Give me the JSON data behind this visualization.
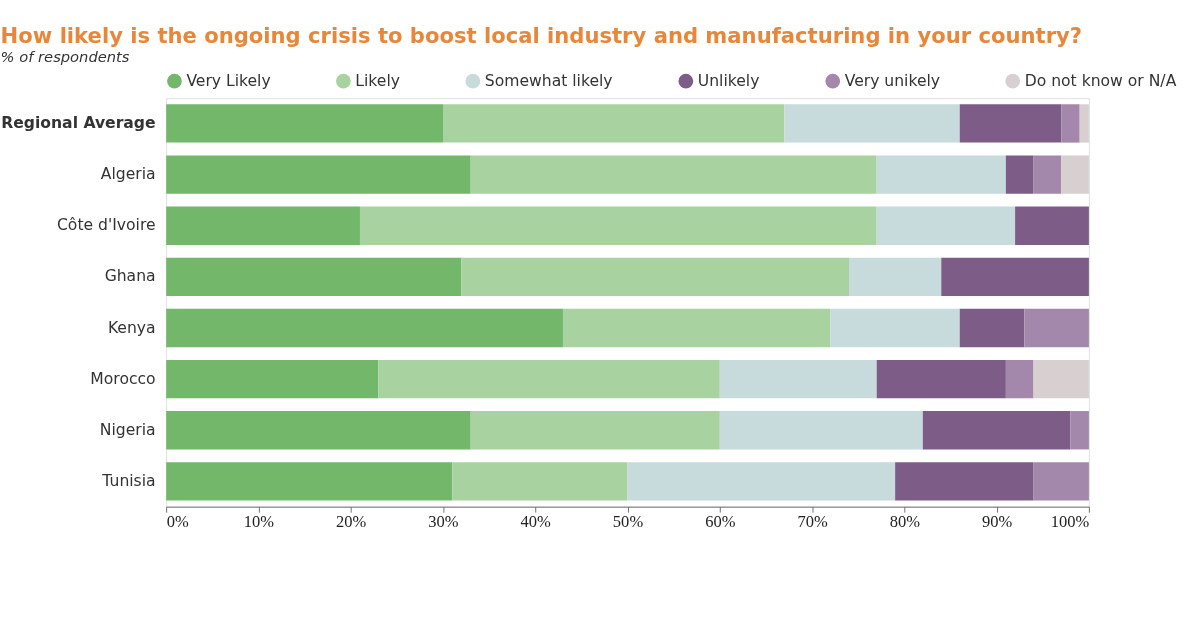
{
  "chart_data": {
    "type": "bar",
    "orientation": "horizontal",
    "stacked": true,
    "title": "How likely is the ongoing crisis to boost local industry and manufacturing in your country?",
    "subtitle": "% of respondents",
    "categories": [
      "Regional Average",
      "Algeria",
      "Côte d'Ivoire",
      "Ghana",
      "Kenya",
      "Morocco",
      "Nigeria",
      "Tunisia"
    ],
    "series": [
      {
        "name": "Very Likely",
        "color": "#72b76a",
        "values": [
          30,
          33,
          21,
          32,
          43,
          23,
          33,
          31
        ]
      },
      {
        "name": "Likely",
        "color": "#a8d3a0",
        "values": [
          37,
          44,
          56,
          42,
          29,
          37,
          27,
          19
        ]
      },
      {
        "name": "Somewhat likely",
        "color": "#c7dadc",
        "values": [
          19,
          14,
          15,
          10,
          14,
          17,
          22,
          29
        ]
      },
      {
        "name": "Unlikely",
        "color": "#7d5c88",
        "values": [
          11,
          3,
          8,
          16,
          7,
          14,
          16,
          15
        ]
      },
      {
        "name": "Very unikely",
        "color": "#a388ab",
        "values": [
          2,
          3,
          0,
          0,
          7,
          3,
          2,
          6
        ]
      },
      {
        "name": "Do not know or N/A",
        "color": "#d8d0d0",
        "values": [
          1,
          3,
          0,
          0,
          0,
          6,
          0,
          0
        ]
      }
    ],
    "xlim": [
      0,
      100
    ],
    "xticks": [
      {
        "value": 0,
        "label": "0%"
      },
      {
        "value": 10,
        "label": "10%"
      },
      {
        "value": 20,
        "label": "20%"
      },
      {
        "value": 30,
        "label": "30%"
      },
      {
        "value": 40,
        "label": "40%"
      },
      {
        "value": 50,
        "label": "50%"
      },
      {
        "value": 60,
        "label": "60%"
      },
      {
        "value": 70,
        "label": "70%"
      },
      {
        "value": 80,
        "label": "80%"
      },
      {
        "value": 90,
        "label": "90%"
      },
      {
        "value": 100,
        "label": "100%"
      }
    ],
    "legend": "top left",
    "grid": false
  }
}
